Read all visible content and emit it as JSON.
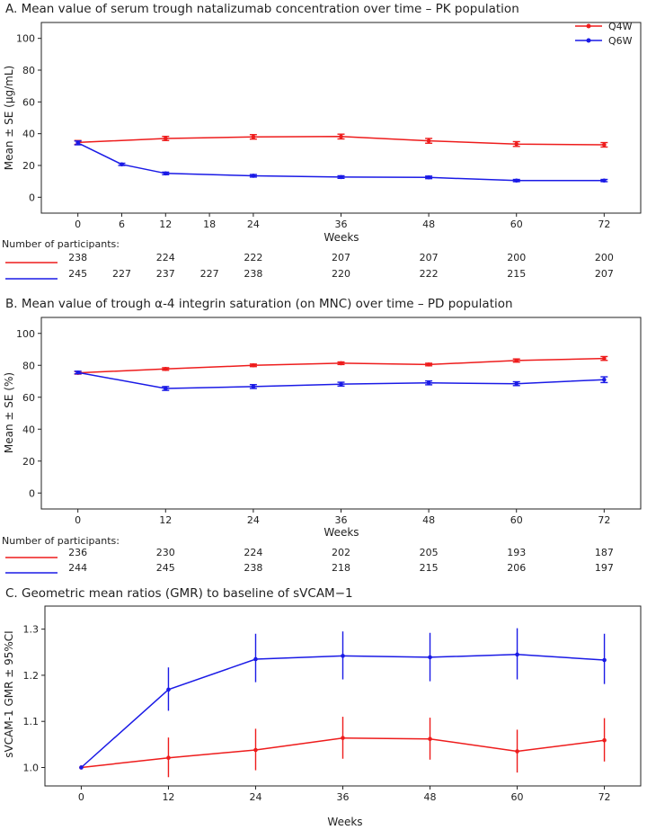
{
  "colors": {
    "q4w": "#ee1c1c",
    "q6w": "#1a1ae6",
    "axis": "#222222"
  },
  "legend": {
    "q4w": "Q4W",
    "q6w": "Q6W"
  },
  "participants_label": "Number of participants:",
  "chart_data": [
    {
      "id": "A",
      "type": "line",
      "title": "A. Mean value of serum trough natalizumab concentration over time – PK population",
      "xlabel": "Weeks",
      "ylabel": "Mean ± SE (μg/mL)",
      "xlim": [
        -5,
        77
      ],
      "ylim": [
        -10,
        110
      ],
      "xticks": [
        0,
        6,
        12,
        18,
        24,
        36,
        48,
        60,
        72
      ],
      "yticks": [
        0,
        20,
        40,
        60,
        80,
        100
      ],
      "legend_position": "top-right",
      "error_style": "capped",
      "series": [
        {
          "name": "Q4W",
          "color_key": "q4w",
          "x": [
            0,
            12,
            24,
            36,
            48,
            60,
            72
          ],
          "y": [
            34.5,
            37,
            38,
            38.2,
            35.5,
            33.5,
            33
          ],
          "lo": [
            33.3,
            35.7,
            36.6,
            36.7,
            34,
            32,
            31.6
          ],
          "hi": [
            35.7,
            38.3,
            39.4,
            39.7,
            37,
            35,
            34.4
          ]
        },
        {
          "name": "Q6W",
          "color_key": "q6w",
          "x": [
            0,
            6,
            12,
            24,
            36,
            48,
            60,
            72
          ],
          "y": [
            34.2,
            20.7,
            15,
            13.5,
            12.7,
            12.5,
            10.5,
            10.5
          ],
          "lo": [
            33,
            20,
            14.2,
            12.7,
            11.9,
            11.7,
            9.8,
            9.8
          ],
          "hi": [
            35.4,
            21.4,
            15.8,
            14.3,
            13.5,
            13.3,
            11.2,
            11.2
          ]
        }
      ],
      "participants": {
        "x": [
          0,
          6,
          12,
          18,
          24,
          36,
          48,
          60,
          72
        ],
        "rows": [
          {
            "name": "Q4W",
            "color_key": "q4w",
            "values": [
              "238",
              "",
              "224",
              "",
              "222",
              "207",
              "207",
              "200",
              "200"
            ]
          },
          {
            "name": "Q6W",
            "color_key": "q6w",
            "values": [
              "245",
              "227",
              "237",
              "227",
              "238",
              "220",
              "222",
              "215",
              "207"
            ]
          }
        ]
      }
    },
    {
      "id": "B",
      "type": "line",
      "title": "B. Mean value of trough α-4 integrin saturation (on MNC) over time – PD population",
      "xlabel": "Weeks",
      "ylabel": "Mean ± SE (%)",
      "xlim": [
        -5,
        77
      ],
      "ylim": [
        -10,
        110
      ],
      "xticks": [
        0,
        12,
        24,
        36,
        48,
        60,
        72
      ],
      "yticks": [
        0,
        20,
        40,
        60,
        80,
        100
      ],
      "error_style": "capped",
      "series": [
        {
          "name": "Q4W",
          "color_key": "q4w",
          "x": [
            0,
            12,
            24,
            36,
            48,
            60,
            72
          ],
          "y": [
            75.3,
            77.7,
            80,
            81.3,
            80.5,
            83,
            84.3
          ],
          "lo": [
            74.5,
            76.9,
            79.2,
            80.5,
            79.7,
            82,
            83.1
          ],
          "hi": [
            76.1,
            78.5,
            80.8,
            82.1,
            81.3,
            84,
            85.5
          ]
        },
        {
          "name": "Q6W",
          "color_key": "q6w",
          "x": [
            0,
            12,
            24,
            36,
            48,
            60,
            72
          ],
          "y": [
            75.5,
            65.5,
            66.7,
            68.2,
            69,
            68.5,
            71
          ],
          "lo": [
            74.7,
            64.3,
            65.5,
            67,
            67.8,
            67.3,
            69.2
          ],
          "hi": [
            76.3,
            66.7,
            67.9,
            69.4,
            70.2,
            69.7,
            72.8
          ]
        }
      ],
      "participants": {
        "x": [
          0,
          12,
          24,
          36,
          48,
          60,
          72
        ],
        "rows": [
          {
            "name": "Q4W",
            "color_key": "q4w",
            "values": [
              "236",
              "230",
              "224",
              "202",
              "205",
              "193",
              "187"
            ]
          },
          {
            "name": "Q6W",
            "color_key": "q6w",
            "values": [
              "244",
              "245",
              "238",
              "218",
              "215",
              "206",
              "197"
            ]
          }
        ]
      }
    },
    {
      "id": "C",
      "type": "line",
      "title": "C. Geometric mean ratios (GMR) to baseline of sVCAM−1",
      "xlabel": "Weeks",
      "ylabel": "sVCAM-1 GMR ± 95%CI",
      "xlim": [
        -5,
        77
      ],
      "ylim": [
        0.96,
        1.35
      ],
      "xticks": [
        0,
        12,
        24,
        36,
        48,
        60,
        72
      ],
      "yticks": [
        "1.0",
        "1.1",
        "1.2",
        "1.3"
      ],
      "error_style": "bars",
      "series": [
        {
          "name": "Q4W",
          "color_key": "q4w",
          "x": [
            0,
            12,
            24,
            36,
            48,
            60,
            72
          ],
          "y": [
            1.0,
            1.021,
            1.038,
            1.064,
            1.062,
            1.035,
            1.059
          ],
          "lo": [
            1.0,
            0.979,
            0.994,
            1.019,
            1.017,
            0.989,
            1.013
          ],
          "hi": [
            1.0,
            1.065,
            1.084,
            1.11,
            1.108,
            1.082,
            1.107
          ]
        },
        {
          "name": "Q6W",
          "color_key": "q6w",
          "x": [
            0,
            12,
            24,
            36,
            48,
            60,
            72
          ],
          "y": [
            1.0,
            1.169,
            1.235,
            1.242,
            1.239,
            1.245,
            1.233
          ],
          "lo": [
            1.0,
            1.123,
            1.185,
            1.191,
            1.187,
            1.191,
            1.181
          ],
          "hi": [
            1.0,
            1.217,
            1.29,
            1.295,
            1.292,
            1.302,
            1.29
          ]
        }
      ]
    }
  ]
}
